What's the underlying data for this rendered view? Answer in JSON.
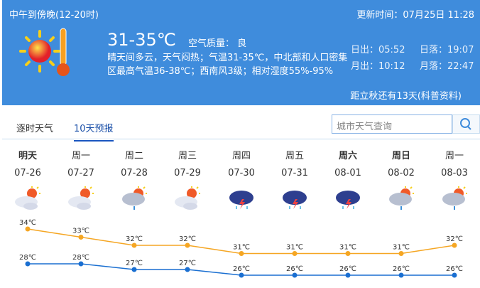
{
  "header": {
    "period": "中午到傍晚(12-20时)",
    "update": "更新时间：07月25日 11:28",
    "temp": "31-35℃",
    "air_quality": "空气质量： 良",
    "description": "晴天间多云，天气闷热；气温31-35℃，中北部和人口密集区最高气温36-38℃；西南风3级；相对湿度55%-95%",
    "sunrise": "日出：05:52",
    "sunset": "日落：19:07",
    "moonrise": "月出：10:12",
    "moonset": "月落：22:47",
    "autumn": "距立秋还有13天(科普资料)",
    "icon": "sunny-hot-icon"
  },
  "tabs": [
    {
      "label": "逐时天气"
    },
    {
      "label": "10天预报"
    }
  ],
  "search": {
    "placeholder": "城市天气查询",
    "icon": "search-icon"
  },
  "days": [
    {
      "week": "明天",
      "date": "07-26",
      "icon": "partly-cloudy",
      "high": "34℃",
      "low": "28℃",
      "hi": 34,
      "lo": 28,
      "bold": true
    },
    {
      "week": "周一",
      "date": "07-27",
      "icon": "cloudy-sun",
      "high": "33℃",
      "low": "28℃",
      "hi": 33,
      "lo": 28
    },
    {
      "week": "周二",
      "date": "07-28",
      "icon": "shower",
      "high": "32℃",
      "low": "27℃",
      "hi": 32,
      "lo": 27
    },
    {
      "week": "周三",
      "date": "07-29",
      "icon": "cloudy-sun",
      "high": "32℃",
      "low": "27℃",
      "hi": 32,
      "lo": 27
    },
    {
      "week": "周四",
      "date": "07-30",
      "icon": "thunderstorm",
      "high": "31℃",
      "low": "26℃",
      "hi": 31,
      "lo": 26
    },
    {
      "week": "周五",
      "date": "07-31",
      "icon": "thunderstorm",
      "high": "31℃",
      "low": "26℃",
      "hi": 31,
      "lo": 26
    },
    {
      "week": "周六",
      "date": "08-01",
      "icon": "thunderstorm",
      "high": "31℃",
      "low": "26℃",
      "hi": 31,
      "lo": 26,
      "bold": true
    },
    {
      "week": "周日",
      "date": "08-02",
      "icon": "shower",
      "high": "31℃",
      "low": "26℃",
      "hi": 31,
      "lo": 26,
      "bold": true
    },
    {
      "week": "周一",
      "date": "08-03",
      "icon": "shower",
      "high": "32℃",
      "low": "26℃",
      "hi": 32,
      "lo": 26
    }
  ],
  "colors": {
    "header": "#3f8cdc",
    "high_line": "#f5a623",
    "low_line": "#1a6fd1"
  }
}
